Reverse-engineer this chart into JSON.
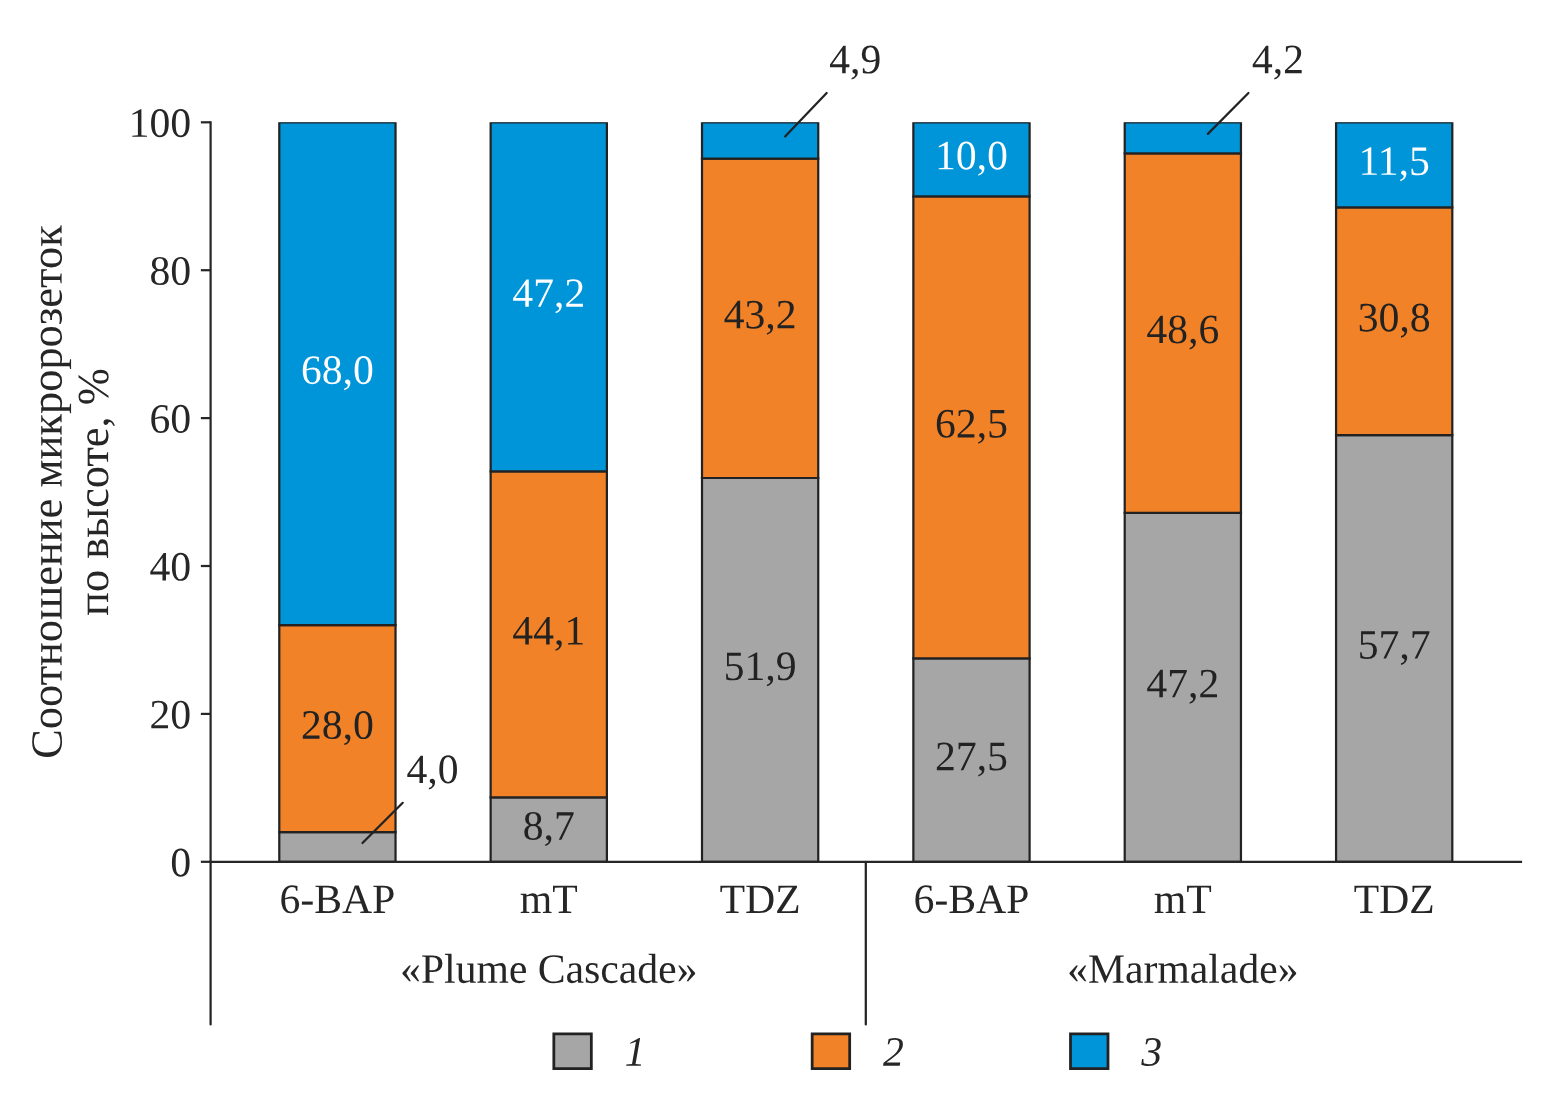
{
  "chart_data": {
    "type": "bar",
    "stacked": true,
    "ylabel": "Соотношение микророзеток\nпо высоте, %",
    "categories": [
      "6-BAP",
      "mT",
      "TDZ",
      "6-BAP",
      "mT",
      "TDZ"
    ],
    "series": [
      {
        "name": "1",
        "color": "#a6a6a6",
        "values": [
          4.0,
          8.7,
          51.9,
          27.5,
          47.2,
          57.7
        ],
        "value_labels": [
          "4,0",
          "8,7",
          "51,9",
          "27,5",
          "47,2",
          "57,7"
        ]
      },
      {
        "name": "2",
        "color": "#f28228",
        "values": [
          28.0,
          44.1,
          43.2,
          62.5,
          48.6,
          30.8
        ],
        "value_labels": [
          "28,0",
          "44,1",
          "43,2",
          "62,5",
          "48,6",
          "30,8"
        ]
      },
      {
        "name": "3",
        "color": "#0095d9",
        "values": [
          68.0,
          47.2,
          4.9,
          10.0,
          4.2,
          11.5
        ],
        "value_labels": [
          "68,0",
          "47,2",
          "4,9",
          "10,0",
          "4,2",
          "11,5"
        ]
      }
    ],
    "annotations": [
      "«Plume Cascade»",
      "«Marmalade»"
    ],
    "ylim": [
      0,
      100
    ],
    "yticks": [
      0,
      20,
      40,
      60,
      80,
      100
    ],
    "grid": false,
    "legend": "bottom"
  }
}
